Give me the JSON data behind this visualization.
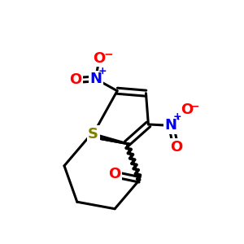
{
  "bg_color": "#ffffff",
  "bond_color": "#000000",
  "S_color": "#808000",
  "N_color": "#0000ff",
  "O_color": "#ff0000",
  "bond_width": 2.2,
  "figsize": [
    3.0,
    3.0
  ],
  "dpi": 100,
  "xlim": [
    0,
    10
  ],
  "ylim": [
    0,
    10
  ]
}
